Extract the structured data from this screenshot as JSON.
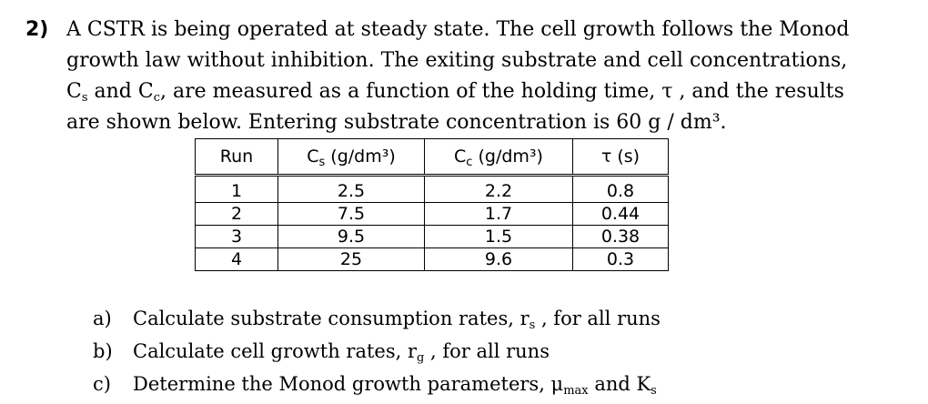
{
  "problem": {
    "number": "2)",
    "line1": "A CSTR is being operated at steady state. The cell growth follows the Monod",
    "line2": "growth law without inhibition. The exiting substrate and cell concentrations,",
    "line3_c": "C",
    "line3_s": "s",
    "line3_and": " and C",
    "line3_c2": "c",
    "line3_rest": ", are measured as a function of the holding time, τ , and the results",
    "line4": "are shown below. Entering substrate concentration is 60 g / dm³."
  },
  "table": {
    "headers": {
      "run": "Run",
      "cs_c": "C",
      "cs_sub": "s",
      "cs_unit": " (g/dm³)",
      "cc_c": "C",
      "cc_sub": "c",
      "cc_unit": " (g/dm³)",
      "tau": "τ (s)"
    },
    "rows": [
      {
        "run": "1",
        "cs": "2.5",
        "cc": "2.2",
        "tau": "0.8"
      },
      {
        "run": "2",
        "cs": "7.5",
        "cc": "1.7",
        "tau": "0.44"
      },
      {
        "run": "3",
        "cs": "9.5",
        "cc": "1.5",
        "tau": "0.38"
      },
      {
        "run": "4",
        "cs": "25",
        "cc": "9.6",
        "tau": "0.3"
      }
    ]
  },
  "questions": {
    "a_label": "a)",
    "a_text": "Calculate substrate consumption rates, r",
    "a_sub": "s",
    "a_end": " , for all runs",
    "b_label": "b)",
    "b_text": "Calculate cell growth rates, r",
    "b_sub": "g",
    "b_end": " , for all runs",
    "c_label": "c)",
    "c_text": "Determine the Monod growth parameters, μ",
    "c_sub": "max",
    "c_mid": " and K",
    "c_sub2": "s"
  }
}
